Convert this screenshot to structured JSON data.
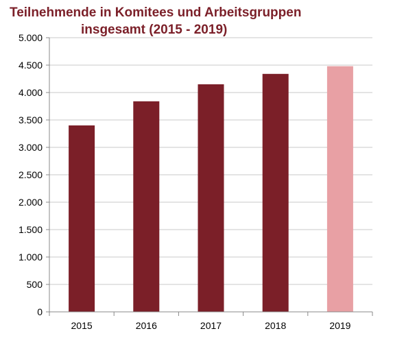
{
  "chart_data": {
    "type": "bar",
    "title_line1": "Teilnehmende in Komitees und Arbeitsgruppen",
    "title_line2": "insgesamt (2015 - 2019)",
    "xlabel": "",
    "ylabel": "",
    "categories": [
      "2015",
      "2016",
      "2017",
      "2018",
      "2019"
    ],
    "values": [
      3400,
      3840,
      4150,
      4340,
      4480
    ],
    "bar_colors": [
      "#7b1f28",
      "#7b1f28",
      "#7b1f28",
      "#7b1f28",
      "#e8a0a4"
    ],
    "ylim": [
      0,
      5000
    ],
    "yticks": [
      0,
      500,
      1000,
      1500,
      2000,
      2500,
      3000,
      3500,
      4000,
      4500,
      5000
    ],
    "ytick_labels": [
      "0",
      "500",
      "1.000",
      "1.500",
      "2.000",
      "2.500",
      "3.000",
      "3.500",
      "4.000",
      "4.500",
      "5.000"
    ],
    "grid": true,
    "legend": "none"
  }
}
